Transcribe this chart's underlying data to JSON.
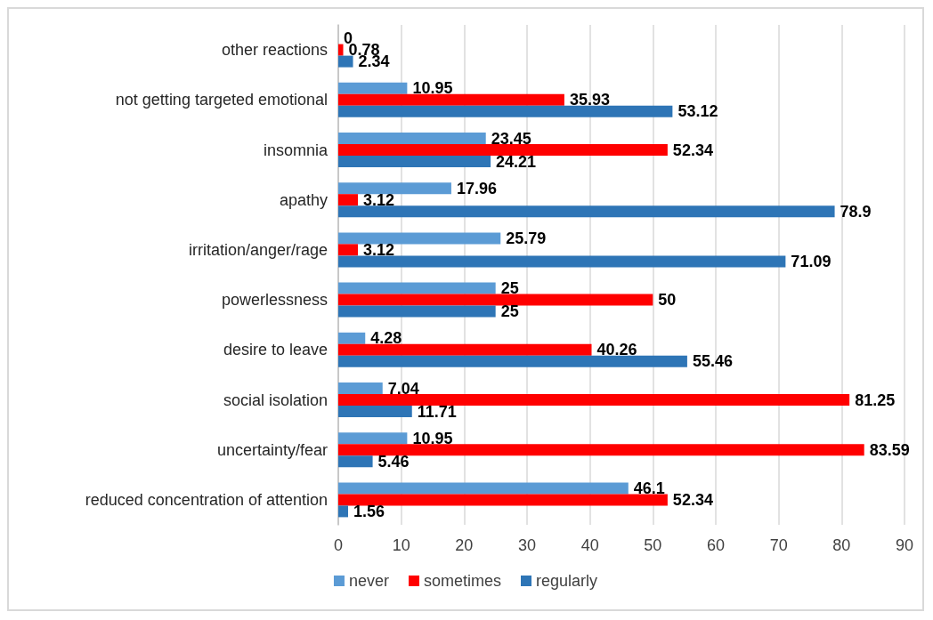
{
  "chart_data": {
    "type": "bar",
    "orientation": "horizontal",
    "categories": [
      "other reactions",
      "not getting targeted emotional",
      "insomnia",
      "apathy",
      "irritation/anger/rage",
      "powerlessness",
      "desire to leave",
      "social isolation",
      "uncertainty/fear",
      "reduced concentration of attention"
    ],
    "series": [
      {
        "name": "never",
        "color": "#5b9bd5",
        "values": [
          0,
          10.95,
          23.45,
          17.96,
          25.79,
          25,
          4.28,
          7.04,
          10.95,
          46.1
        ]
      },
      {
        "name": "sometimes",
        "color": "#ff0000",
        "values": [
          0.78,
          35.93,
          52.34,
          3.12,
          3.12,
          50,
          40.26,
          81.25,
          83.59,
          52.34
        ]
      },
      {
        "name": "regularly",
        "color": "#2e75b6",
        "values": [
          2.34,
          53.12,
          24.21,
          78.9,
          71.09,
          25,
          55.46,
          11.71,
          5.46,
          1.56
        ]
      }
    ],
    "xlim": [
      0,
      90
    ],
    "xticks": [
      0,
      10,
      20,
      30,
      40,
      50,
      60,
      70,
      80,
      90
    ],
    "grid": "x",
    "legend": "bottom",
    "data_labels": true
  }
}
